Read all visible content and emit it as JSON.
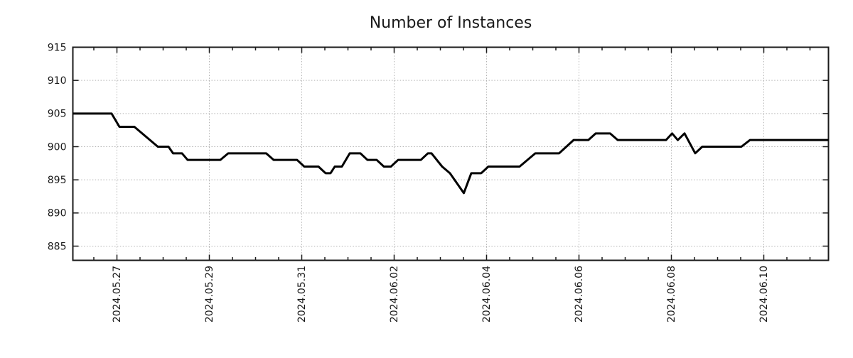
{
  "chart_data": {
    "type": "line",
    "title": "Number of Instances",
    "colors": {
      "line": "#000000",
      "grid": "#b3b3b3",
      "axis": "#1a1a1a",
      "text": "#1a1a1a",
      "background": "#ffffff"
    },
    "x_axis": {
      "label_rotation_deg": 90,
      "epoch_label": "2024.05.27",
      "range_days": [
        -0.9538,
        15.4
      ],
      "minor_tick_step_days": 0.5,
      "major_ticks": [
        {
          "d": 0,
          "label": "2024.05.27"
        },
        {
          "d": 2,
          "label": "2024.05.29"
        },
        {
          "d": 4,
          "label": "2024.05.31"
        },
        {
          "d": 6,
          "label": "2024.06.02"
        },
        {
          "d": 8,
          "label": "2024.06.04"
        },
        {
          "d": 10,
          "label": "2024.06.06"
        },
        {
          "d": 12,
          "label": "2024.06.08"
        },
        {
          "d": 14,
          "label": "2024.06.10"
        }
      ]
    },
    "y_axis": {
      "range": [
        882.857,
        915
      ],
      "tick_values": [
        885,
        890,
        895,
        900,
        905,
        910,
        915
      ],
      "tick_labels": [
        "885",
        "890",
        "895",
        "900",
        "905",
        "910",
        "915"
      ],
      "grid_values": [
        885,
        890,
        895,
        900,
        905,
        910
      ]
    },
    "grid": true,
    "legend": "none",
    "series": [
      {
        "color": "#000000",
        "points": [
          [
            -0.9538,
            905
          ],
          [
            -0.1154,
            905
          ],
          [
            0.0538,
            903
          ],
          [
            0.3769,
            903
          ],
          [
            0.8846,
            900
          ],
          [
            1.1154,
            900
          ],
          [
            1.2154,
            899
          ],
          [
            1.4077,
            899
          ],
          [
            1.5308,
            898
          ],
          [
            2.2385,
            898
          ],
          [
            2.4077,
            899
          ],
          [
            3.2308,
            899
          ],
          [
            3.3923,
            898
          ],
          [
            3.9,
            898
          ],
          [
            4.0538,
            897
          ],
          [
            4.3615,
            897
          ],
          [
            4.5154,
            896
          ],
          [
            4.6231,
            896
          ],
          [
            4.7154,
            897
          ],
          [
            4.8692,
            897
          ],
          [
            5.0385,
            899
          ],
          [
            5.2692,
            899
          ],
          [
            5.4231,
            898
          ],
          [
            5.6231,
            898
          ],
          [
            5.7769,
            897
          ],
          [
            5.9308,
            897
          ],
          [
            6.0846,
            898
          ],
          [
            6.5769,
            898
          ],
          [
            6.7308,
            899
          ],
          [
            6.8077,
            899
          ],
          [
            7.0385,
            897
          ],
          [
            7.2077,
            896
          ],
          [
            7.5077,
            893
          ],
          [
            7.6692,
            896
          ],
          [
            7.8846,
            896
          ],
          [
            8.0385,
            897
          ],
          [
            8.7154,
            897
          ],
          [
            9.0538,
            899
          ],
          [
            9.5692,
            899
          ],
          [
            9.8846,
            901
          ],
          [
            10.2031,
            901
          ],
          [
            10.3615,
            902
          ],
          [
            10.675,
            902
          ],
          [
            10.8385,
            901
          ],
          [
            11.8846,
            901
          ],
          [
            12.0154,
            902
          ],
          [
            12.1385,
            901
          ],
          [
            12.2846,
            902
          ],
          [
            12.5154,
            899
          ],
          [
            12.6692,
            900
          ],
          [
            13.5154,
            900
          ],
          [
            13.7,
            901
          ],
          [
            15.4,
            901
          ]
        ]
      }
    ]
  }
}
